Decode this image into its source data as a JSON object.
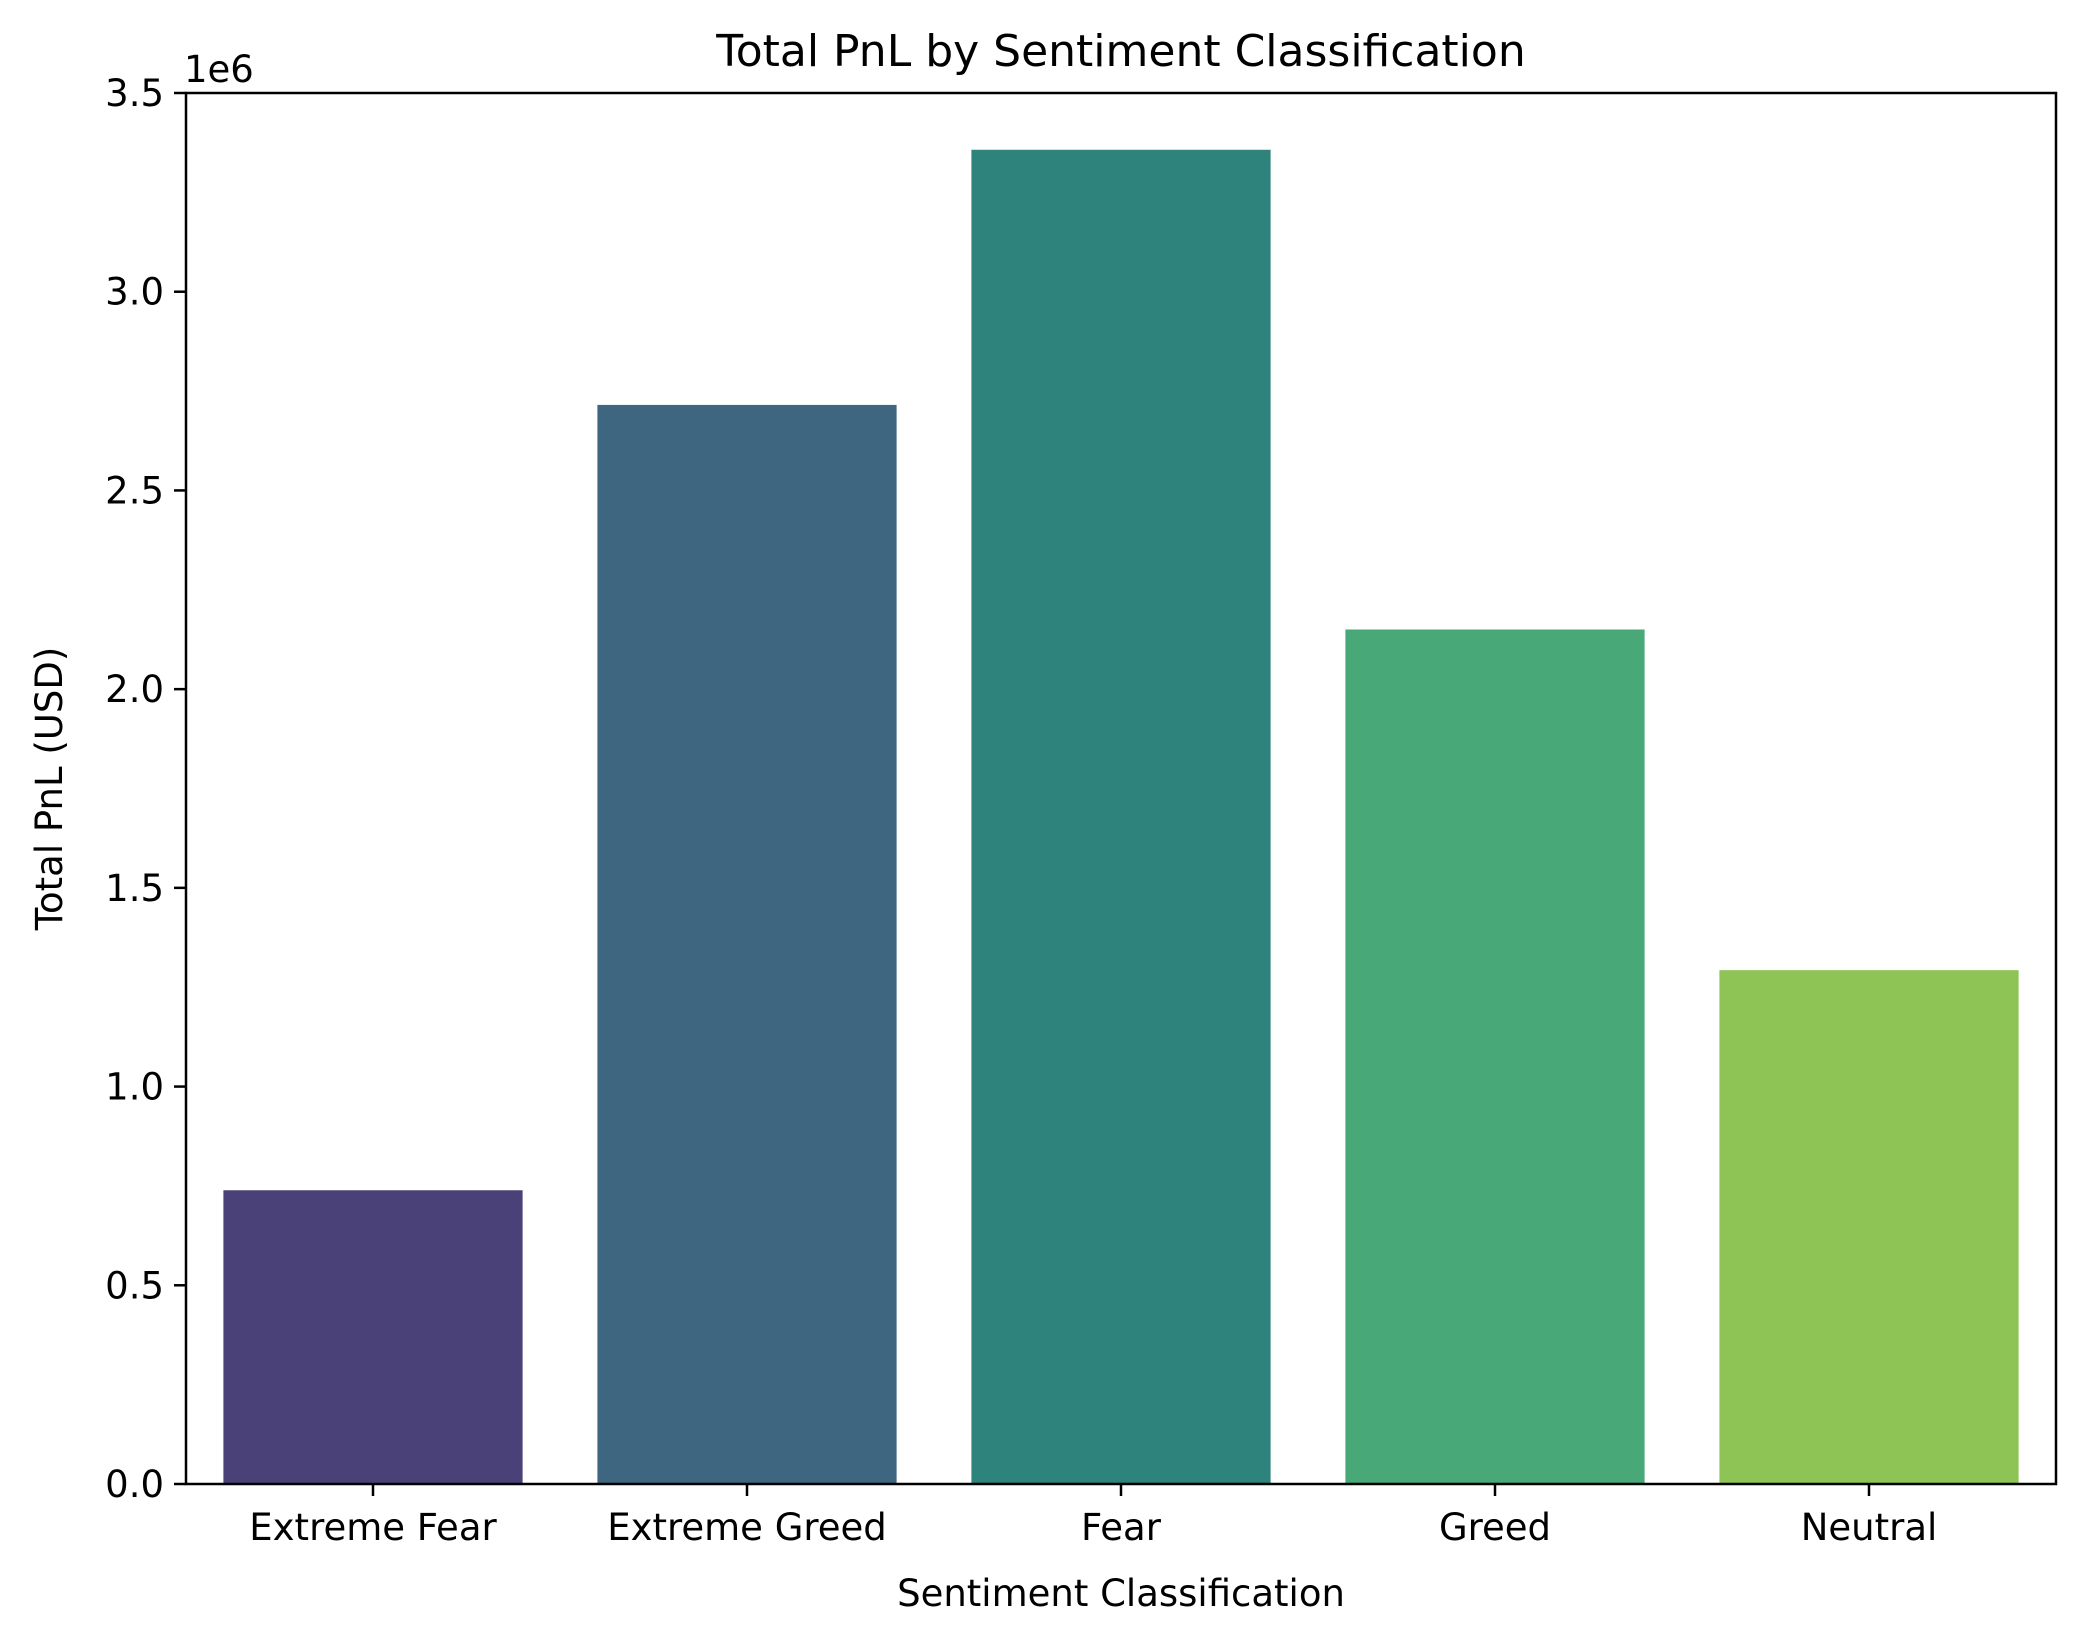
{
  "chart_data": {
    "type": "bar",
    "title": "Total PnL by Sentiment Classification",
    "xlabel": "Sentiment Classification",
    "ylabel": "Total PnL (USD)",
    "y_offset_label": "1e6",
    "categories": [
      "Extreme Fear",
      "Extreme Greed",
      "Fear",
      "Greed",
      "Neutral"
    ],
    "values": [
      739110,
      2715170,
      3357155,
      2150129,
      1292921
    ],
    "colors": [
      "#4a4178",
      "#3f6680",
      "#2e837c",
      "#48a878",
      "#8dc455"
    ],
    "ylim": [
      0,
      3500000
    ],
    "yticks": [
      {
        "value": 0,
        "label": "0.0"
      },
      {
        "value": 500000,
        "label": "0.5"
      },
      {
        "value": 1000000,
        "label": "1.0"
      },
      {
        "value": 1500000,
        "label": "1.5"
      },
      {
        "value": 2000000,
        "label": "2.0"
      },
      {
        "value": 2500000,
        "label": "2.5"
      },
      {
        "value": 3000000,
        "label": "3.0"
      },
      {
        "value": 3500000,
        "label": "3.5"
      }
    ],
    "grid": false,
    "legend": "none"
  }
}
